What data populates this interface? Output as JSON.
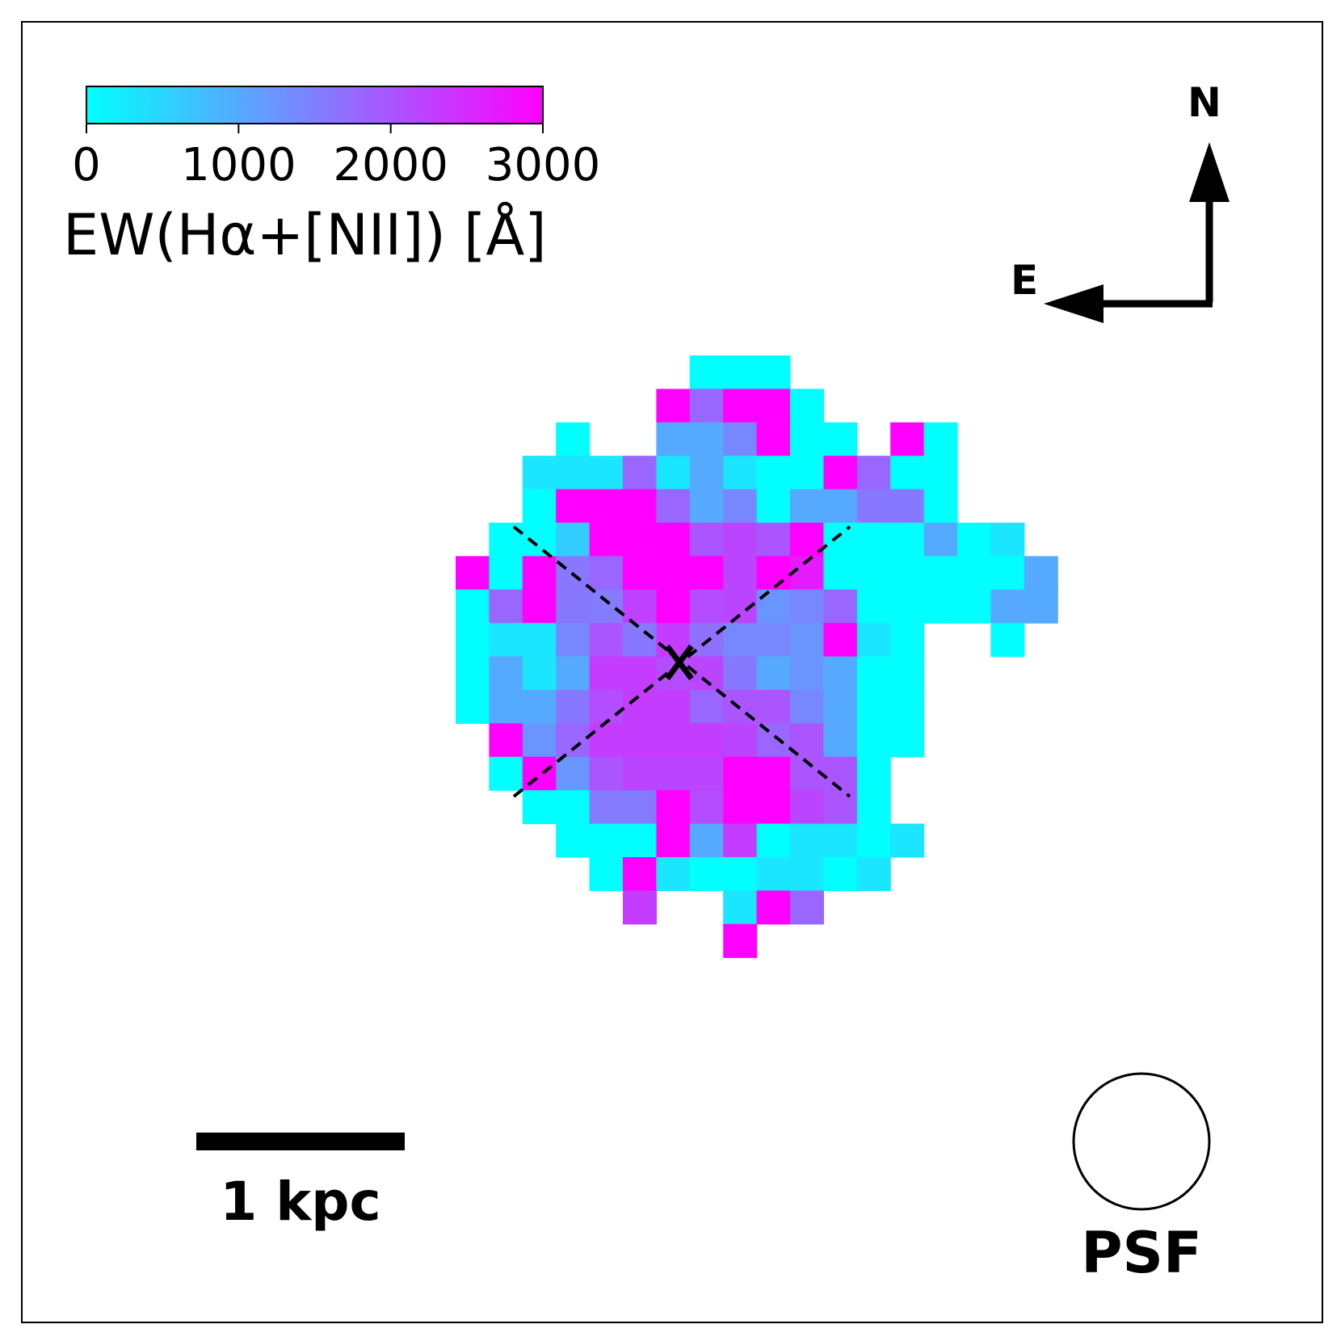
{
  "chart_data": {
    "type": "heatmap",
    "colorbar": {
      "label": "EW(Hα+[NII]) [Å]",
      "min": 0,
      "max": 3000,
      "ticks": [
        "0",
        "1000",
        "2000",
        "3000"
      ],
      "cmap": [
        "#00ffff",
        "#ff00ff"
      ]
    },
    "compass": {
      "north": "N",
      "east": "E"
    },
    "scalebar": {
      "label": "1 kpc"
    },
    "psf": {
      "label": "PSF"
    },
    "grid": {
      "origin_col": 13,
      "origin_row": 10,
      "rows": [
        "........ccc.....",
        ".......mpmmc....",
        "....c..ggkmcc.mc",
        "...dddpdgdccmpcc",
        "...cmmmpgkcggvvc",
        "..ccemmmqrqmcccgcd",
        ".mcmvpmmmrmuccccccg",
        ".cpmvnwmtrhkpccccgg",
        ".cddkqvsokkhmdc..c",
        ".cgdgsstrvghgcc",
        ".cggvtsspqqkgcc",
        "..mhpssssrpqgcc",
        "..cmhqrrrmmqqc",
        "...ccnnmtmmrqc",
        "....cccmgscddcd",
        ".....cmdccddcd",
        "......s..dmp",
        ".........m"
      ],
      "levels": {
        ".": null,
        "c": 0,
        "d": 300,
        "e": 600,
        "g": 1000,
        "h": 1250,
        "k": 1400,
        "n": 1550,
        "o": 1700,
        "p": 1800,
        "q": 2000,
        "r": 2200,
        "s": 2300,
        "t": 2100,
        "u": 2700,
        "v": 1600,
        "w": 2250,
        "m": 3000
      }
    },
    "centre_marker": "x",
    "axes_lines": "dashed cross"
  }
}
